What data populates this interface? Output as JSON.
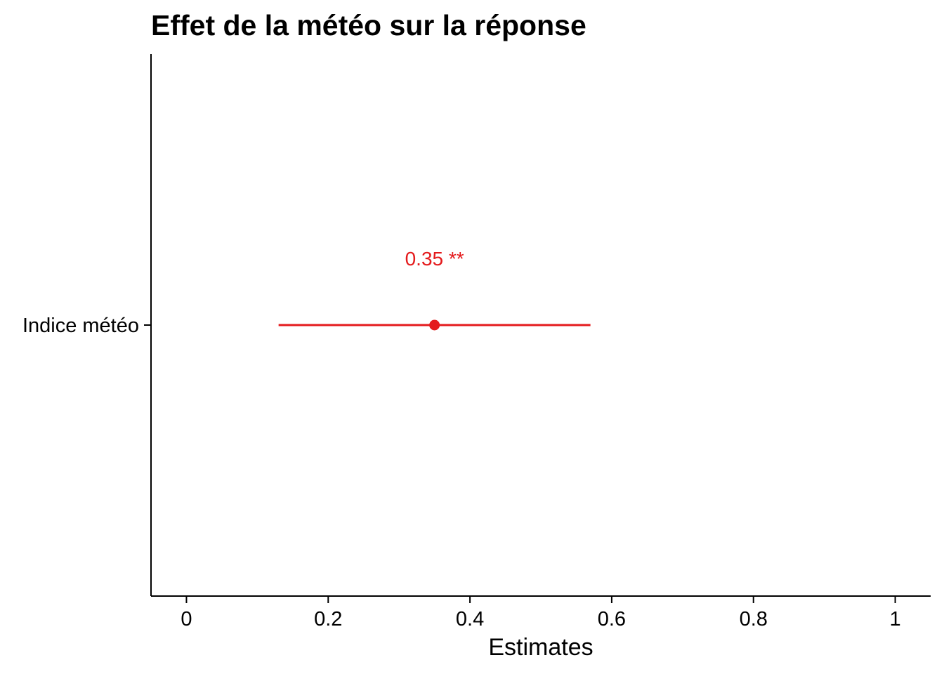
{
  "chart_data": {
    "type": "scatter",
    "title": "Effet de la météo sur la réponse",
    "xlabel": "Estimates",
    "ylabel": "",
    "xlim": [
      -0.05,
      1.05
    ],
    "x_ticks": [
      0,
      0.2,
      0.4,
      0.6,
      0.8,
      1
    ],
    "x_tick_labels": [
      "0",
      "0.2",
      "0.4",
      "0.6",
      "0.8",
      "1"
    ],
    "categories": [
      "Indice météo"
    ],
    "points": [
      {
        "term": "Indice météo",
        "estimate": 0.35,
        "conf_low": 0.13,
        "conf_high": 0.57,
        "label": "0.35 **"
      }
    ],
    "grid": false,
    "colors": {
      "estimate": "#e41a1c",
      "axis": "#000000"
    }
  }
}
